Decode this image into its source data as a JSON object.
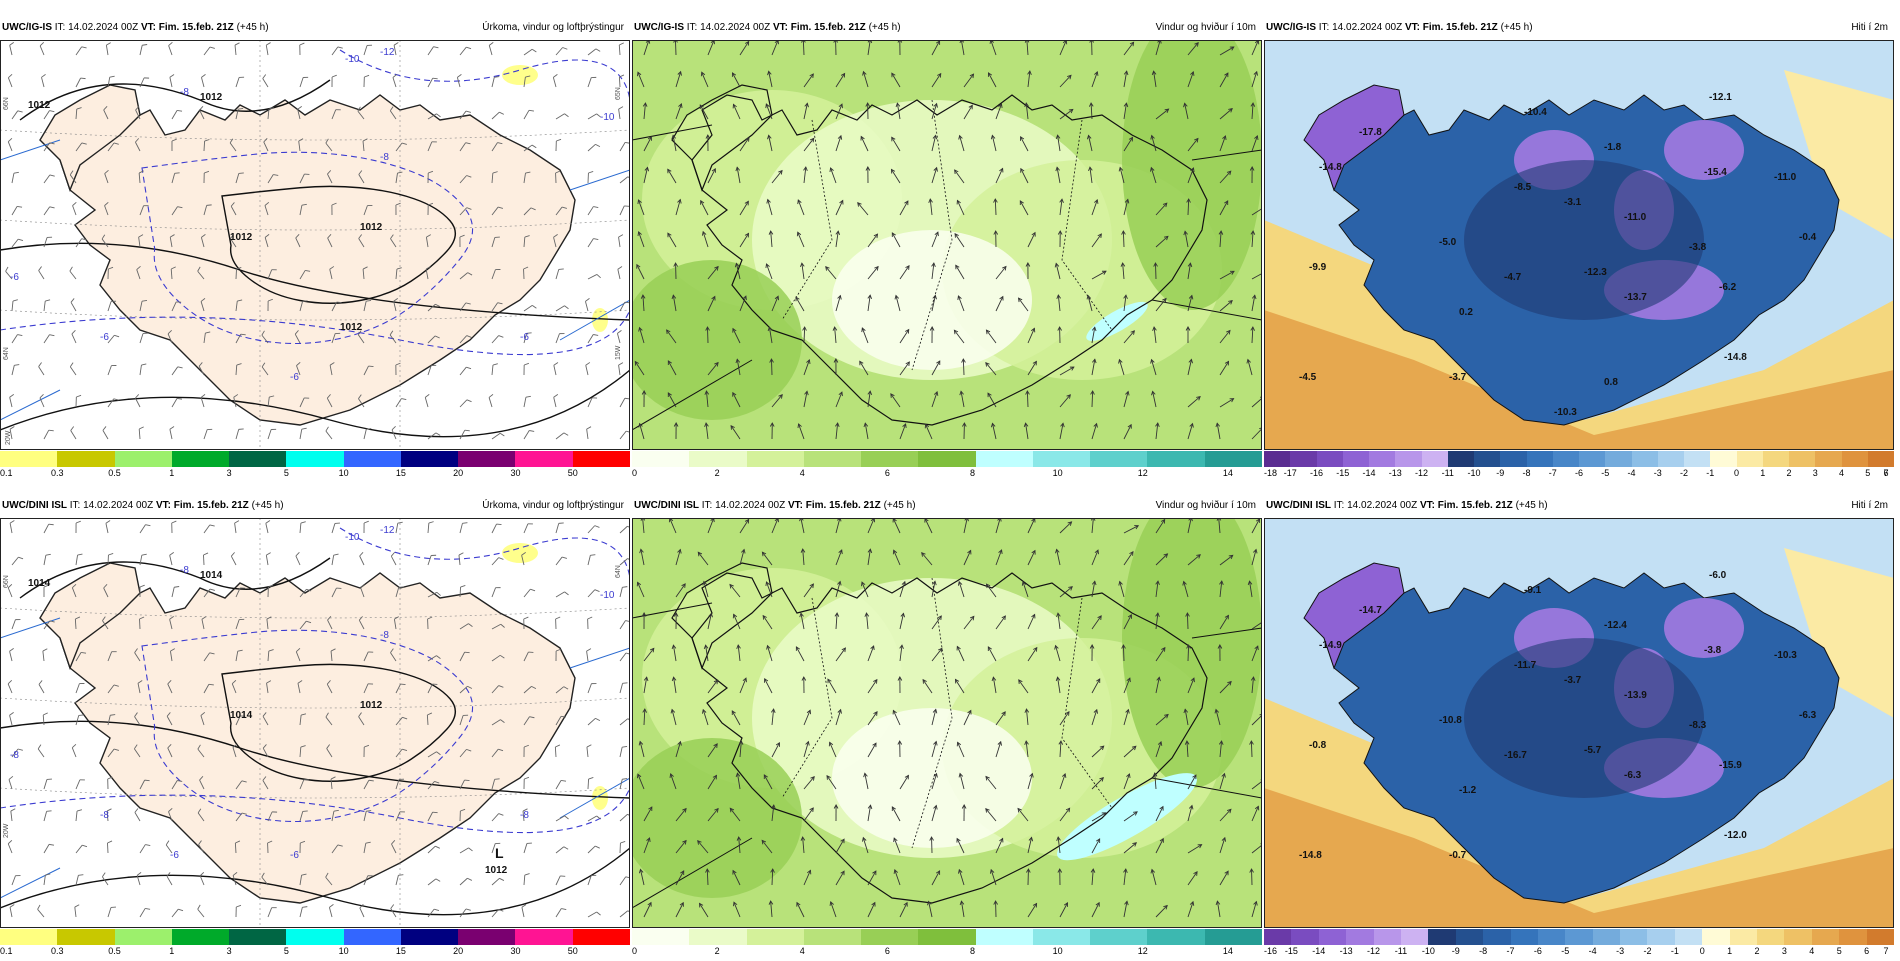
{
  "panels": [
    {
      "id": "p1",
      "model": "UWC/IG-IS",
      "it_label": "IT: 14.02.2024 00Z",
      "vt_label": "VT: Fim. 15.feb. 21Z",
      "lead": "(+45 h)",
      "field": "Úrkoma, vindur og loftþrýstingur",
      "type": "precip",
      "isobar_labels": [
        "1012",
        "1012",
        "1012",
        "1012",
        "1012"
      ],
      "isotherm_labels": [
        "-8",
        "-8",
        "-6",
        "-6",
        "-6",
        "-10",
        "-12",
        "-10",
        "-6"
      ],
      "grid_labels": [
        "66N",
        "65N",
        "64N",
        "20W",
        "15W"
      ],
      "colorbar": {
        "colors": [
          "#ffff80",
          "#c8c800",
          "#9cf06c",
          "#00aa2a",
          "#006644",
          "#00ffee",
          "#3366ff",
          "#000080",
          "#7a0070",
          "#ff1493",
          "#ff0000"
        ],
        "ticks": [
          "0.1",
          "0.3",
          "0.5",
          "1",
          "3",
          "5",
          "10",
          "15",
          "20",
          "30",
          "50"
        ]
      }
    },
    {
      "id": "p2",
      "model": "UWC/IG-IS",
      "it_label": "IT: 14.02.2024 00Z",
      "vt_label": "VT: Fim. 15.feb. 21Z",
      "lead": "(+45 h)",
      "field": "Vindur og hviður í 10m",
      "type": "wind",
      "colorbar": {
        "colors": [
          "#fafff0",
          "#eafbc8",
          "#d4f19a",
          "#b8e27a",
          "#98cf56",
          "#7fbf3c",
          "#bfffff",
          "#8ae8e8",
          "#5ed0cc",
          "#3cb8b0",
          "#259c94"
        ],
        "ticks": [
          "0",
          "2",
          "4",
          "6",
          "8",
          "10",
          "12",
          "14"
        ]
      }
    },
    {
      "id": "p3",
      "model": "UWC/IG-IS",
      "it_label": "IT: 14.02.2024 00Z",
      "vt_label": "VT: Fim. 15.feb. 21Z",
      "lead": "(+45 h)",
      "field": "Hiti í 2m",
      "type": "temp",
      "temp_labels": [
        "-17.8",
        "-14.8",
        "-10.4",
        "-12.1",
        "-1.8",
        "-8.5",
        "-3.1",
        "-15.4",
        "-11.0",
        "-11.0",
        "-5.0",
        "-3.8",
        "-4.7",
        "-12.3",
        "-13.7",
        "-6.2",
        "-0.4",
        "-9.9",
        "0.2",
        "-4.5",
        "-3.7",
        "-14.8",
        "0.8",
        "-10.3"
      ],
      "colorbar": {
        "colors": [
          "#5a2d91",
          "#6a3aa8",
          "#7a4cc0",
          "#8e62d4",
          "#a27ae0",
          "#b896ea",
          "#cdb2f2",
          "#1f3a73",
          "#24508f",
          "#2b62a8",
          "#3574bb",
          "#4886c8",
          "#5c98d3",
          "#74abdc",
          "#8cbee6",
          "#a7cfee",
          "#c3e0f4",
          "#fffbd6",
          "#fbeaa4",
          "#f4d77e",
          "#eec165",
          "#e6a84f",
          "#df933e",
          "#d27b2d"
        ],
        "ticks": [
          "-18",
          "-17",
          "-16",
          "-15",
          "-14",
          "-13",
          "-12",
          "-11",
          "-10",
          "-9",
          "-8",
          "-7",
          "-6",
          "-5",
          "-4",
          "-3",
          "-2",
          "-1",
          "0",
          "1",
          "2",
          "3",
          "4",
          "5",
          "6",
          "7"
        ]
      }
    },
    {
      "id": "p4",
      "model": "UWC/DINI ISL",
      "it_label": "IT: 14.02.2024 00Z",
      "vt_label": "VT: Fim. 15.feb. 21Z",
      "lead": "(+45 h)",
      "field": "Úrkoma, vindur og loftþrýstingur",
      "type": "precip",
      "isobar_labels": [
        "1014",
        "1014",
        "1014",
        "1012"
      ],
      "isotherm_labels": [
        "-8",
        "-8",
        "-8",
        "-8",
        "-8",
        "-10",
        "-12",
        "-10",
        "-6",
        "-6"
      ],
      "low_label": "L",
      "low_value": "1012",
      "grid_labels": [
        "66N",
        "64N",
        "20W"
      ],
      "colorbar": {
        "colors": [
          "#ffff80",
          "#c8c800",
          "#9cf06c",
          "#00aa2a",
          "#006644",
          "#00ffee",
          "#3366ff",
          "#000080",
          "#7a0070",
          "#ff1493",
          "#ff0000"
        ],
        "ticks": [
          "0.1",
          "0.3",
          "0.5",
          "1",
          "3",
          "5",
          "10",
          "15",
          "20",
          "30",
          "50"
        ]
      }
    },
    {
      "id": "p5",
      "model": "UWC/DINI ISL",
      "it_label": "IT: 14.02.2024 00Z",
      "vt_label": "VT: Fim. 15.feb. 21Z",
      "lead": "(+45 h)",
      "field": "Vindur og hviður í 10m",
      "type": "wind",
      "colorbar": {
        "colors": [
          "#fafff0",
          "#eafbc8",
          "#d4f19a",
          "#b8e27a",
          "#98cf56",
          "#7fbf3c",
          "#bfffff",
          "#8ae8e8",
          "#5ed0cc",
          "#3cb8b0",
          "#259c94"
        ],
        "ticks": [
          "0",
          "2",
          "4",
          "6",
          "8",
          "10",
          "12",
          "14"
        ]
      }
    },
    {
      "id": "p6",
      "model": "UWC/DINI ISL",
      "it_label": "IT: 14.02.2024 00Z",
      "vt_label": "VT: Fim. 15.feb. 21Z",
      "lead": "(+45 h)",
      "field": "Hiti í 2m",
      "type": "temp",
      "temp_labels": [
        "-14.7",
        "-14.9",
        "-9.1",
        "-6.0",
        "-12.4",
        "-11.7",
        "-3.7",
        "-3.8",
        "-10.3",
        "-13.9",
        "-10.8",
        "-8.3",
        "-16.7",
        "-5.7",
        "-6.3",
        "-15.9",
        "-6.3",
        "-0.8",
        "-1.2",
        "-14.8",
        "-0.7",
        "-12.0"
      ],
      "colorbar": {
        "colors": [
          "#6a3aa8",
          "#7a4cc0",
          "#8e62d4",
          "#a27ae0",
          "#b896ea",
          "#cdb2f2",
          "#1f3a73",
          "#24508f",
          "#2b62a8",
          "#3574bb",
          "#4886c8",
          "#5c98d3",
          "#74abdc",
          "#8cbee6",
          "#a7cfee",
          "#c3e0f4",
          "#fffbd6",
          "#fbeaa4",
          "#f4d77e",
          "#eec165",
          "#e6a84f",
          "#df933e",
          "#d27b2d"
        ],
        "ticks": [
          "-16",
          "-15",
          "-14",
          "-13",
          "-12",
          "-11",
          "-10",
          "-9",
          "-8",
          "-7",
          "-6",
          "-5",
          "-4",
          "-3",
          "-2",
          "-1",
          "0",
          "1",
          "2",
          "3",
          "4",
          "5",
          "6",
          "7"
        ]
      }
    }
  ]
}
